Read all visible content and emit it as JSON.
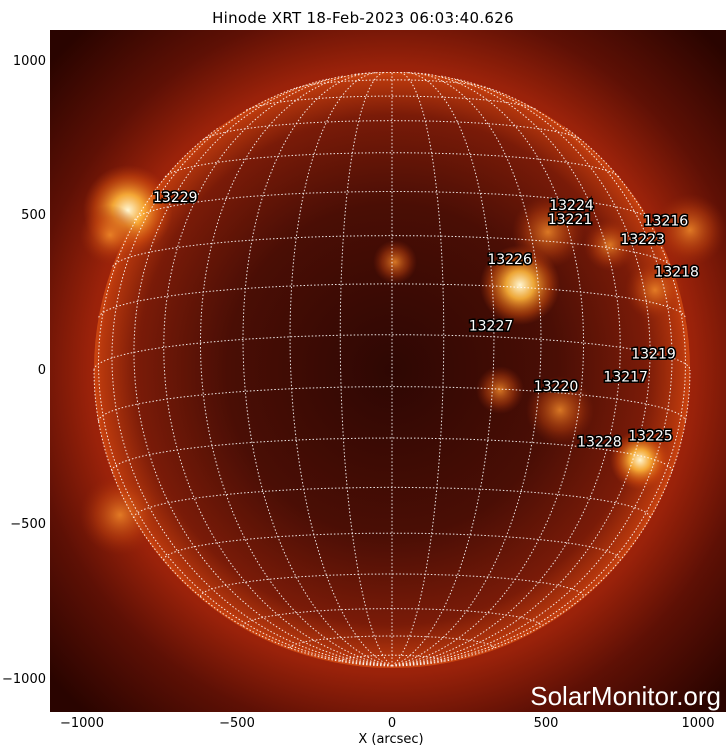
{
  "title": "Hinode XRT 18-Feb-2023 06:03:40.626",
  "xlabel": "X (arcsec)",
  "x_ticks": [
    "−1000",
    "−500",
    "0",
    "500",
    "1000"
  ],
  "y_ticks": [
    "1000",
    "500",
    "0",
    "−500",
    "−1000"
  ],
  "watermark": "SolarMonitor.org",
  "colors": {
    "disk_core": "#3a0a04",
    "disk_mid": "#6b1508",
    "limb": "#c2400f",
    "corona": "#8a1e08",
    "background": "#1a0200",
    "grid": "#ffffff",
    "bright": "#ffe7a0"
  },
  "active_regions": [
    {
      "number": "13229",
      "x": -700,
      "y": 555
    },
    {
      "number": "13224",
      "x": 580,
      "y": 530
    },
    {
      "number": "13221",
      "x": 575,
      "y": 485
    },
    {
      "number": "13216",
      "x": 885,
      "y": 480
    },
    {
      "number": "13223",
      "x": 810,
      "y": 420
    },
    {
      "number": "13226",
      "x": 380,
      "y": 355
    },
    {
      "number": "13218",
      "x": 920,
      "y": 315
    },
    {
      "number": "13227",
      "x": 320,
      "y": 140
    },
    {
      "number": "13219",
      "x": 845,
      "y": 50
    },
    {
      "number": "13217",
      "x": 755,
      "y": -25
    },
    {
      "number": "13220",
      "x": 530,
      "y": -55
    },
    {
      "number": "13225",
      "x": 835,
      "y": -215
    },
    {
      "number": "13228",
      "x": 670,
      "y": -235
    }
  ]
}
